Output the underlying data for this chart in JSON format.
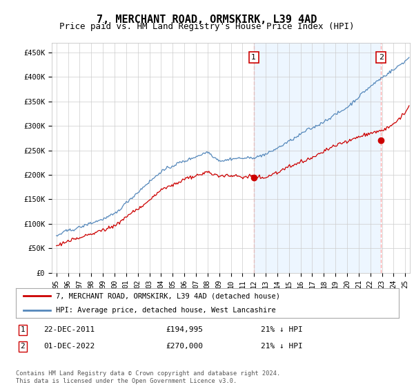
{
  "title": "7, MERCHANT ROAD, ORMSKIRK, L39 4AD",
  "subtitle": "Price paid vs. HM Land Registry's House Price Index (HPI)",
  "ylabel_ticks": [
    "£0",
    "£50K",
    "£100K",
    "£150K",
    "£200K",
    "£250K",
    "£300K",
    "£350K",
    "£400K",
    "£450K"
  ],
  "ytick_values": [
    0,
    50000,
    100000,
    150000,
    200000,
    250000,
    300000,
    350000,
    400000,
    450000
  ],
  "ylim": [
    0,
    470000
  ],
  "xlim_start": 1994.6,
  "xlim_end": 2025.4,
  "red_line_color": "#cc0000",
  "blue_line_color": "#5588bb",
  "blue_fill_color": "#ddeeff",
  "marker1_x": 2011.97,
  "marker1_y": 194995,
  "marker2_x": 2022.92,
  "marker2_y": 270000,
  "legend_red_label": "7, MERCHANT ROAD, ORMSKIRK, L39 4AD (detached house)",
  "legend_blue_label": "HPI: Average price, detached house, West Lancashire",
  "table_row1": [
    "1",
    "22-DEC-2011",
    "£194,995",
    "21% ↓ HPI"
  ],
  "table_row2": [
    "2",
    "01-DEC-2022",
    "£270,000",
    "21% ↓ HPI"
  ],
  "footer": "Contains HM Land Registry data © Crown copyright and database right 2024.\nThis data is licensed under the Open Government Licence v3.0.",
  "background_color": "#ffffff",
  "grid_color": "#cccccc",
  "title_fontsize": 11,
  "subtitle_fontsize": 9,
  "tick_fontsize": 7.5,
  "vline_color": "#ffaaaa",
  "annotation_box_color": "#cc0000"
}
